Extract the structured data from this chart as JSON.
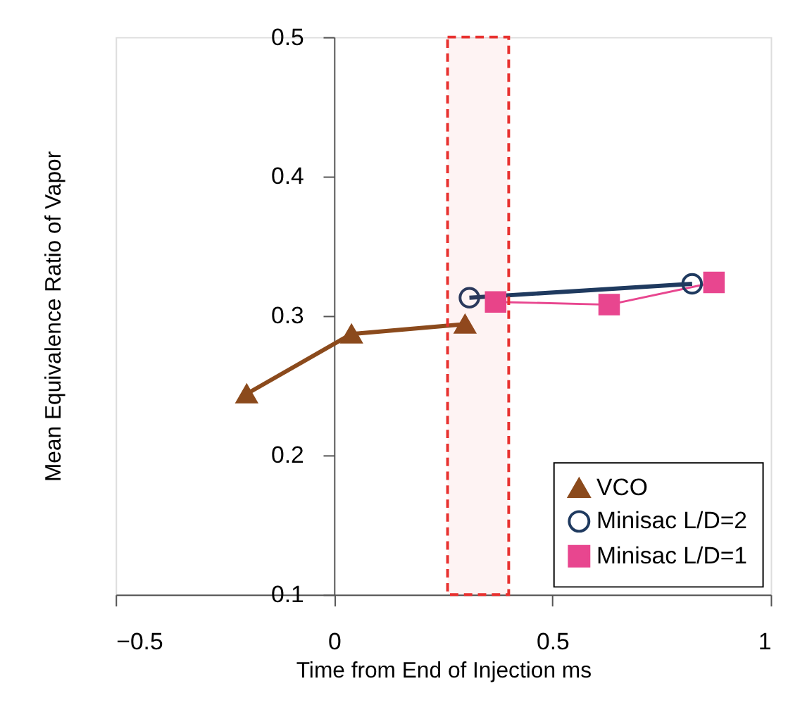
{
  "chart_data": {
    "type": "line",
    "xlabel": "Time from End of Injection ms",
    "ylabel": "Mean Equivalence Ratio of Vapor",
    "xlim": [
      -0.5,
      1
    ],
    "xticks": [
      -0.5,
      0,
      0.5,
      1
    ],
    "ylim": [
      0.1,
      0.5
    ],
    "yticks": [
      0.1,
      0.2,
      0.3,
      0.4,
      0.5
    ],
    "grid": false,
    "legend": "bottom right",
    "series": [
      {
        "name": "VCO",
        "color": "#8b4a1c",
        "marker": "triangle",
        "x": [
          -0.2,
          0.04,
          0.3
        ],
        "values": [
          0.244,
          0.287,
          0.294
        ]
      },
      {
        "name": "Minisac L/D=2",
        "color": "#1f3a5f",
        "marker": "circle",
        "x": [
          0.31,
          0.82
        ],
        "values": [
          0.313,
          0.323
        ]
      },
      {
        "name": "Minisac L/D=1",
        "color": "#e8468f",
        "marker": "square",
        "x": [
          0.37,
          0.63,
          0.87
        ],
        "values": [
          0.31,
          0.308,
          0.324
        ]
      }
    ],
    "bands": [
      {
        "axis": "x",
        "from": 0.26,
        "to": 0.4,
        "color": "#e8312f"
      }
    ]
  }
}
